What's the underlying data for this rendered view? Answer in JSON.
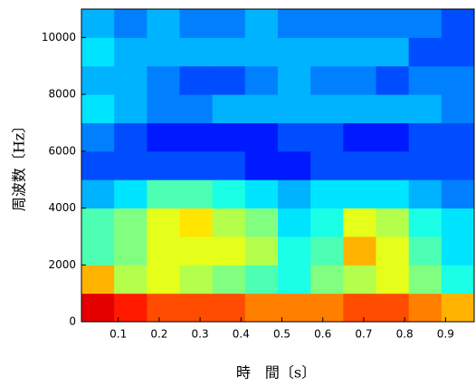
{
  "chart_data": {
    "type": "heatmap",
    "colormap": "jet",
    "x_label": "時　間〔s〕",
    "y_label": "周波数〔Hz〕",
    "xbins": [
      0.01,
      0.09,
      0.17,
      0.25,
      0.33,
      0.41,
      0.49,
      0.57,
      0.65,
      0.73,
      0.81,
      0.89,
      0.97
    ],
    "ybins": [
      0,
      1000,
      2000,
      3000,
      4000,
      5000,
      6000,
      7000,
      8000,
      9000,
      10000,
      11000
    ],
    "values": [
      [
        0.9,
        0.85,
        0.8,
        0.8,
        0.8,
        0.75,
        0.75,
        0.75,
        0.8,
        0.8,
        0.75,
        0.7
      ],
      [
        0.7,
        0.55,
        0.6,
        0.55,
        0.5,
        0.45,
        0.4,
        0.5,
        0.55,
        0.6,
        0.5,
        0.4
      ],
      [
        0.45,
        0.5,
        0.6,
        0.6,
        0.6,
        0.55,
        0.4,
        0.45,
        0.7,
        0.6,
        0.45,
        0.35
      ],
      [
        0.45,
        0.5,
        0.6,
        0.65,
        0.55,
        0.5,
        0.35,
        0.4,
        0.6,
        0.55,
        0.4,
        0.35
      ],
      [
        0.3,
        0.35,
        0.45,
        0.45,
        0.4,
        0.35,
        0.3,
        0.35,
        0.35,
        0.35,
        0.3,
        0.25
      ],
      [
        0.2,
        0.2,
        0.2,
        0.2,
        0.2,
        0.15,
        0.15,
        0.2,
        0.2,
        0.2,
        0.2,
        0.2
      ],
      [
        0.25,
        0.2,
        0.15,
        0.15,
        0.15,
        0.15,
        0.2,
        0.2,
        0.15,
        0.15,
        0.2,
        0.2
      ],
      [
        0.35,
        0.3,
        0.25,
        0.25,
        0.3,
        0.3,
        0.3,
        0.3,
        0.3,
        0.3,
        0.3,
        0.25
      ],
      [
        0.3,
        0.3,
        0.25,
        0.2,
        0.2,
        0.25,
        0.3,
        0.25,
        0.25,
        0.2,
        0.25,
        0.25
      ],
      [
        0.35,
        0.3,
        0.3,
        0.3,
        0.3,
        0.3,
        0.3,
        0.3,
        0.3,
        0.3,
        0.2,
        0.2
      ],
      [
        0.3,
        0.25,
        0.3,
        0.25,
        0.25,
        0.3,
        0.25,
        0.25,
        0.25,
        0.25,
        0.25,
        0.2
      ]
    ],
    "xlim": [
      0.01,
      0.97
    ],
    "ylim": [
      0,
      11000
    ],
    "xticks": [
      0.1,
      0.2,
      0.3,
      0.4,
      0.5,
      0.6,
      0.7,
      0.8,
      0.9
    ],
    "yticks": [
      0,
      2000,
      4000,
      6000,
      8000,
      10000
    ]
  }
}
